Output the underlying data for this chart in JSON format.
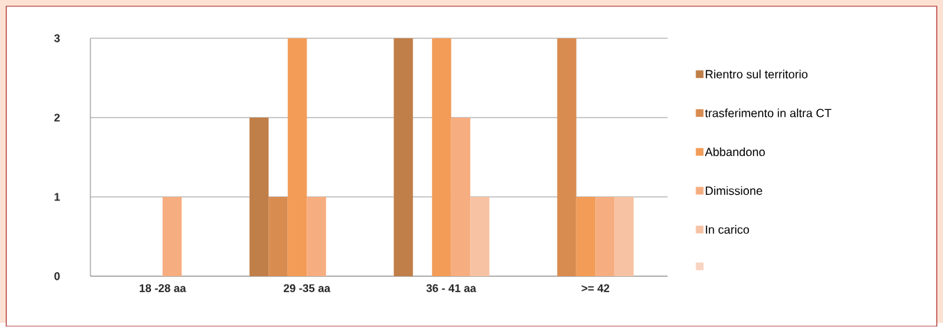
{
  "chart_data": {
    "type": "bar",
    "categories": [
      "18 -28 aa",
      "29 -35 aa",
      "36 - 41 aa",
      ">= 42"
    ],
    "series": [
      {
        "name": "Rientro sul territorio",
        "color": "#c07e48",
        "values": [
          0,
          2,
          3,
          0
        ]
      },
      {
        "name": "trasferimento in altra CT",
        "color": "#d98c50",
        "values": [
          0,
          1,
          0,
          3
        ]
      },
      {
        "name": "Abbandono",
        "color": "#f29c58",
        "values": [
          0,
          3,
          3,
          1
        ]
      },
      {
        "name": "Dimissione",
        "color": "#f6ad80",
        "values": [
          1,
          1,
          2,
          1
        ]
      },
      {
        "name": "In carico",
        "color": "#f7c2a4",
        "values": [
          0,
          0,
          1,
          1
        ]
      },
      {
        "color": "#f9d3c0",
        "values": [
          0,
          0,
          0,
          0
        ]
      }
    ],
    "ylim": [
      0,
      3
    ],
    "yticks": [
      0,
      1,
      2,
      3
    ],
    "grid": "y",
    "legend": "right"
  }
}
